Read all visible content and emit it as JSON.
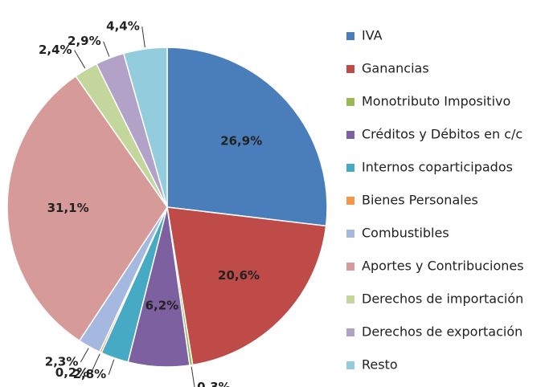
{
  "chart_data": {
    "type": "pie",
    "categories": [
      "IVA",
      "Ganancias",
      "Monotributo Impositivo",
      "Créditos y Débitos en c/c",
      "Internos coparticipados",
      "Bienes Personales",
      "Combustibles",
      "Aportes y Contribuciones",
      "Derechos de importación",
      "Derechos de exportación",
      "Resto"
    ],
    "values": [
      26.9,
      20.6,
      0.3,
      6.2,
      2.8,
      0.2,
      2.3,
      31.1,
      2.4,
      2.9,
      4.4
    ],
    "value_labels": [
      "26,9%",
      "20,6%",
      "0,3%",
      "6,2%",
      "2,8%",
      "0,2%",
      "2,3%",
      "31,1%",
      "2,4%",
      "2,9%",
      "4,4%"
    ],
    "colors": [
      "#4a7ebb",
      "#be4b48",
      "#98b954",
      "#7d60a0",
      "#46aac5",
      "#f79646",
      "#a5b8e0",
      "#d69b99",
      "#c3d69b",
      "#b3a2c7",
      "#93cddd"
    ],
    "legend": "right"
  }
}
